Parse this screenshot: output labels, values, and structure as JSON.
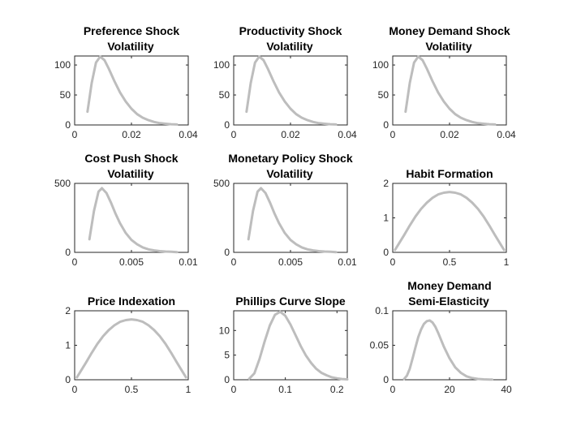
{
  "figure": {
    "background": "#ffffff",
    "curve_color": "#bdbdbd",
    "axis_color": "#262626"
  },
  "chart_data": [
    {
      "type": "line",
      "title": [
        "Preference Shock",
        "Volatility"
      ],
      "xlim": [
        0,
        0.04
      ],
      "ylim": [
        0,
        115
      ],
      "xticks": [
        0,
        0.02,
        0.04
      ],
      "xticklabels": [
        "0",
        "0.02",
        "0.04"
      ],
      "yticks": [
        0,
        50,
        100
      ],
      "yticklabels": [
        "0",
        "50",
        "100"
      ],
      "series": [
        {
          "x": [
            0.0045,
            0.006,
            0.0075,
            0.009,
            0.0105,
            0.012,
            0.014,
            0.016,
            0.018,
            0.02,
            0.022,
            0.024,
            0.026,
            0.028,
            0.03,
            0.032,
            0.034,
            0.036
          ],
          "y": [
            22,
            70,
            104,
            114,
            108,
            94,
            73,
            54,
            39,
            27,
            18,
            12,
            8,
            5,
            3,
            2,
            1.2,
            0.8
          ]
        }
      ]
    },
    {
      "type": "line",
      "title": [
        "Productivity Shock",
        "Volatility"
      ],
      "xlim": [
        0,
        0.04
      ],
      "ylim": [
        0,
        115
      ],
      "xticks": [
        0,
        0.02,
        0.04
      ],
      "xticklabels": [
        "0",
        "0.02",
        "0.04"
      ],
      "yticks": [
        0,
        50,
        100
      ],
      "yticklabels": [
        "0",
        "50",
        "100"
      ],
      "series": [
        {
          "x": [
            0.0045,
            0.006,
            0.0075,
            0.009,
            0.0105,
            0.012,
            0.014,
            0.016,
            0.018,
            0.02,
            0.022,
            0.024,
            0.026,
            0.028,
            0.03,
            0.032,
            0.034,
            0.036
          ],
          "y": [
            22,
            70,
            104,
            114,
            108,
            94,
            73,
            54,
            39,
            27,
            18,
            12,
            8,
            5,
            3,
            2,
            1.2,
            0.8
          ]
        }
      ]
    },
    {
      "type": "line",
      "title": [
        "Money Demand Shock",
        "Volatility"
      ],
      "xlim": [
        0,
        0.04
      ],
      "ylim": [
        0,
        115
      ],
      "xticks": [
        0,
        0.02,
        0.04
      ],
      "xticklabels": [
        "0",
        "0.02",
        "0.04"
      ],
      "yticks": [
        0,
        50,
        100
      ],
      "yticklabels": [
        "0",
        "50",
        "100"
      ],
      "series": [
        {
          "x": [
            0.0045,
            0.006,
            0.0075,
            0.009,
            0.0105,
            0.012,
            0.014,
            0.016,
            0.018,
            0.02,
            0.022,
            0.024,
            0.026,
            0.028,
            0.03,
            0.032,
            0.034,
            0.036
          ],
          "y": [
            22,
            70,
            104,
            114,
            108,
            94,
            73,
            54,
            39,
            27,
            18,
            12,
            8,
            5,
            3,
            2,
            1.2,
            0.8
          ]
        }
      ]
    },
    {
      "type": "line",
      "title": [
        "Cost Push Shock",
        "Volatility"
      ],
      "xlim": [
        0,
        0.01
      ],
      "ylim": [
        0,
        500
      ],
      "xticks": [
        0,
        0.005,
        0.01
      ],
      "xticklabels": [
        "0",
        "0.005",
        "0.01"
      ],
      "yticks": [
        0,
        500
      ],
      "yticklabels": [
        "0",
        "500"
      ],
      "series": [
        {
          "x": [
            0.0013,
            0.0017,
            0.0021,
            0.0024,
            0.0028,
            0.0032,
            0.0036,
            0.004,
            0.0045,
            0.005,
            0.0055,
            0.006,
            0.0065,
            0.007,
            0.0075,
            0.008,
            0.0085,
            0.009
          ],
          "y": [
            95,
            300,
            440,
            465,
            430,
            360,
            280,
            210,
            140,
            90,
            58,
            36,
            22,
            14,
            9,
            6,
            4,
            2
          ]
        }
      ]
    },
    {
      "type": "line",
      "title": [
        "Monetary Policy Shock",
        "Volatility"
      ],
      "xlim": [
        0,
        0.01
      ],
      "ylim": [
        0,
        500
      ],
      "xticks": [
        0,
        0.005,
        0.01
      ],
      "xticklabels": [
        "0",
        "0.005",
        "0.01"
      ],
      "yticks": [
        0,
        500
      ],
      "yticklabels": [
        "0",
        "500"
      ],
      "series": [
        {
          "x": [
            0.0013,
            0.0017,
            0.0021,
            0.0024,
            0.0028,
            0.0032,
            0.0036,
            0.004,
            0.0045,
            0.005,
            0.0055,
            0.006,
            0.0065,
            0.007,
            0.0075,
            0.008,
            0.0085,
            0.009
          ],
          "y": [
            95,
            300,
            440,
            465,
            430,
            360,
            280,
            210,
            140,
            90,
            58,
            36,
            22,
            14,
            9,
            6,
            4,
            2
          ]
        }
      ]
    },
    {
      "type": "line",
      "title": [
        "Habit Formation"
      ],
      "xlim": [
        0,
        1
      ],
      "ylim": [
        0,
        2
      ],
      "xticks": [
        0,
        0.5,
        1
      ],
      "xticklabels": [
        "0",
        "0.5",
        "1"
      ],
      "yticks": [
        0,
        1,
        2
      ],
      "yticklabels": [
        "0",
        "1",
        "2"
      ],
      "series": [
        {
          "x": [
            0.02,
            0.05,
            0.1,
            0.15,
            0.2,
            0.25,
            0.3,
            0.35,
            0.4,
            0.45,
            0.5,
            0.55,
            0.6,
            0.65,
            0.7,
            0.75,
            0.8,
            0.85,
            0.9,
            0.95,
            0.98
          ],
          "y": [
            0.07,
            0.23,
            0.5,
            0.78,
            1.04,
            1.26,
            1.44,
            1.58,
            1.68,
            1.73,
            1.75,
            1.73,
            1.68,
            1.58,
            1.44,
            1.26,
            1.04,
            0.78,
            0.5,
            0.23,
            0.07
          ]
        }
      ]
    },
    {
      "type": "line",
      "title": [
        "Price Indexation"
      ],
      "xlim": [
        0,
        1
      ],
      "ylim": [
        0,
        2
      ],
      "xticks": [
        0,
        0.5,
        1
      ],
      "xticklabels": [
        "0",
        "0.5",
        "1"
      ],
      "yticks": [
        0,
        1,
        2
      ],
      "yticklabels": [
        "0",
        "1",
        "2"
      ],
      "series": [
        {
          "x": [
            0.02,
            0.05,
            0.1,
            0.15,
            0.2,
            0.25,
            0.3,
            0.35,
            0.4,
            0.45,
            0.5,
            0.55,
            0.6,
            0.65,
            0.7,
            0.75,
            0.8,
            0.85,
            0.9,
            0.95,
            0.98
          ],
          "y": [
            0.07,
            0.23,
            0.5,
            0.78,
            1.04,
            1.26,
            1.44,
            1.58,
            1.68,
            1.73,
            1.75,
            1.73,
            1.68,
            1.58,
            1.44,
            1.26,
            1.04,
            0.78,
            0.5,
            0.23,
            0.07
          ]
        }
      ]
    },
    {
      "type": "line",
      "title": [
        "Phillips Curve Slope"
      ],
      "xlim": [
        0,
        0.22
      ],
      "ylim": [
        0,
        14
      ],
      "xticks": [
        0,
        0.1,
        0.2
      ],
      "xticklabels": [
        "0",
        "0.1",
        "0.2"
      ],
      "yticks": [
        0,
        5,
        10
      ],
      "yticklabels": [
        "0",
        "5",
        "10"
      ],
      "series": [
        {
          "x": [
            0.03,
            0.04,
            0.05,
            0.06,
            0.07,
            0.08,
            0.09,
            0.1,
            0.11,
            0.12,
            0.13,
            0.14,
            0.15,
            0.16,
            0.17,
            0.18,
            0.19,
            0.2,
            0.21,
            0.22
          ],
          "y": [
            0.2,
            1.3,
            4.2,
            7.8,
            11,
            13.2,
            13.8,
            13,
            11.2,
            9,
            6.8,
            4.9,
            3.4,
            2.2,
            1.4,
            0.9,
            0.5,
            0.3,
            0.15,
            0.08
          ]
        }
      ]
    },
    {
      "type": "line",
      "title": [
        "Money Demand",
        "Semi-Elasticity"
      ],
      "xlim": [
        0,
        40
      ],
      "ylim": [
        0,
        0.1
      ],
      "xticks": [
        0,
        20,
        40
      ],
      "xticklabels": [
        "0",
        "20",
        "40"
      ],
      "yticks": [
        0,
        0.05,
        0.1
      ],
      "yticklabels": [
        "0",
        "0.05",
        "0.1"
      ],
      "series": [
        {
          "x": [
            4,
            5,
            6,
            7,
            8,
            9,
            10,
            11,
            12,
            13,
            14,
            15,
            16,
            17,
            18,
            20,
            22,
            24,
            26,
            28,
            30,
            32,
            34,
            35
          ],
          "y": [
            0.001,
            0.006,
            0.016,
            0.031,
            0.047,
            0.062,
            0.073,
            0.081,
            0.085,
            0.086,
            0.083,
            0.077,
            0.068,
            0.058,
            0.048,
            0.031,
            0.018,
            0.01,
            0.005,
            0.0025,
            0.0012,
            0.0006,
            0.0003,
            0.0002
          ]
        }
      ]
    }
  ]
}
